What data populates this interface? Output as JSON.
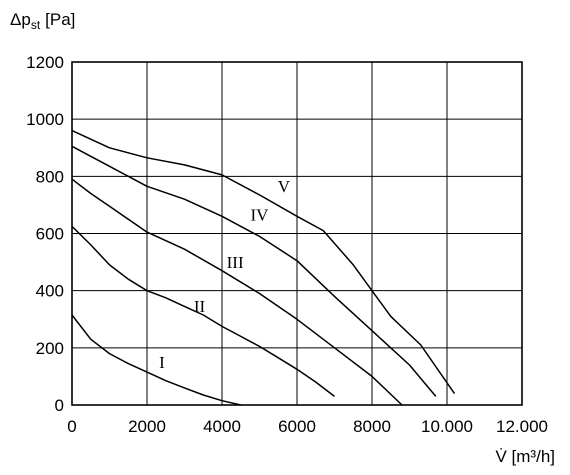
{
  "chart_data": {
    "type": "line",
    "xlabel": "V̇ [m³/h]",
    "ylabel": "Δp",
    "ylabel_subscript": "st",
    "ylabel_unit": "[Pa]",
    "xlim": [
      0,
      12000
    ],
    "ylim": [
      0,
      1200
    ],
    "grid": true,
    "x_ticks": [
      {
        "value": 0,
        "label": "0"
      },
      {
        "value": 2000,
        "label": "2000"
      },
      {
        "value": 4000,
        "label": "4000"
      },
      {
        "value": 6000,
        "label": "6000"
      },
      {
        "value": 8000,
        "label": "8000"
      },
      {
        "value": 10000,
        "label": "10.000"
      },
      {
        "value": 12000,
        "label": "12.000"
      }
    ],
    "y_ticks": [
      {
        "value": 0,
        "label": "0"
      },
      {
        "value": 200,
        "label": "200"
      },
      {
        "value": 400,
        "label": "400"
      },
      {
        "value": 600,
        "label": "600"
      },
      {
        "value": 800,
        "label": "800"
      },
      {
        "value": 1000,
        "label": "1000"
      },
      {
        "value": 1200,
        "label": "1200"
      }
    ],
    "series": [
      {
        "name": "I",
        "label_at": [
          2400,
          130
        ],
        "x": [
          0,
          500,
          1000,
          1500,
          2000,
          2500,
          3000,
          3500,
          4000,
          4500
        ],
        "y": [
          315,
          230,
          180,
          145,
          115,
          85,
          60,
          35,
          15,
          0
        ]
      },
      {
        "name": "II",
        "label_at": [
          3400,
          325
        ],
        "x": [
          0,
          500,
          1000,
          1500,
          2000,
          2500,
          3000,
          3500,
          4000,
          4500,
          5000,
          5500,
          6000,
          6500,
          7000
        ],
        "y": [
          625,
          560,
          490,
          440,
          400,
          375,
          345,
          315,
          275,
          240,
          205,
          165,
          125,
          80,
          30
        ]
      },
      {
        "name": "III",
        "label_at": [
          4350,
          480
        ],
        "x": [
          0,
          500,
          1000,
          2000,
          3000,
          4000,
          5000,
          6000,
          7000,
          8000,
          8800
        ],
        "y": [
          790,
          740,
          695,
          605,
          545,
          470,
          390,
          300,
          200,
          100,
          0
        ]
      },
      {
        "name": "IV",
        "label_at": [
          5000,
          645
        ],
        "x": [
          0,
          1000,
          2000,
          3000,
          4000,
          5000,
          6000,
          7000,
          8000,
          9000,
          9700
        ],
        "y": [
          905,
          835,
          765,
          720,
          660,
          590,
          505,
          380,
          260,
          140,
          30
        ]
      },
      {
        "name": "V",
        "label_at": [
          5650,
          745
        ],
        "x": [
          0,
          1000,
          2000,
          3000,
          4000,
          5000,
          6000,
          6700,
          7500,
          8000,
          8500,
          9300,
          10200
        ],
        "y": [
          960,
          900,
          865,
          840,
          805,
          735,
          660,
          610,
          490,
          400,
          310,
          210,
          40
        ]
      }
    ]
  }
}
